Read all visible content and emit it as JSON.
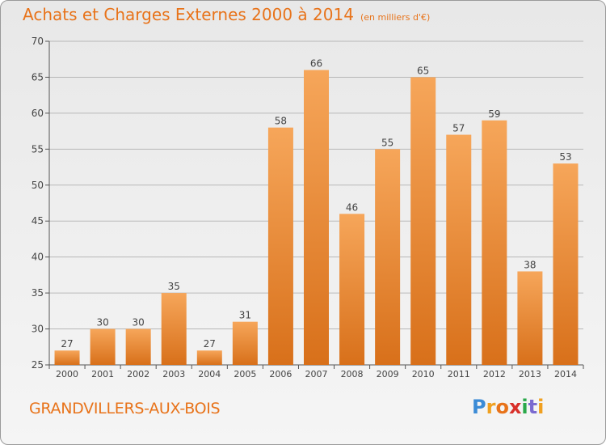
{
  "title": "Achats et Charges Externes 2000 à 2014",
  "subtitle": "(en milliers d'€)",
  "commune": "GRANDVILLERS-AUX-BOIS",
  "logo": {
    "letters": [
      "P",
      "r",
      "o",
      "x",
      "i",
      "t",
      "i"
    ],
    "colors": [
      "#3b8bd6",
      "#f0a020",
      "#e8731a",
      "#d8302a",
      "#2aa84a",
      "#7a6ad0",
      "#f0a020"
    ]
  },
  "colors": {
    "bar_top": "#f6a65a",
    "bar_bottom": "#d8701a",
    "accent": "#e8731a",
    "grid": "#b8b8b8"
  },
  "chart_data": {
    "type": "bar",
    "categories": [
      "2000",
      "2001",
      "2002",
      "2003",
      "2004",
      "2005",
      "2006",
      "2007",
      "2008",
      "2009",
      "2010",
      "2011",
      "2012",
      "2013",
      "2014"
    ],
    "values": [
      27,
      30,
      30,
      35,
      27,
      31,
      58,
      66,
      46,
      55,
      65,
      57,
      59,
      38,
      53
    ],
    "ylim": [
      25,
      70
    ],
    "yticks": [
      25,
      30,
      35,
      40,
      45,
      50,
      55,
      60,
      65,
      70
    ],
    "grid": true,
    "data_labels": true
  }
}
